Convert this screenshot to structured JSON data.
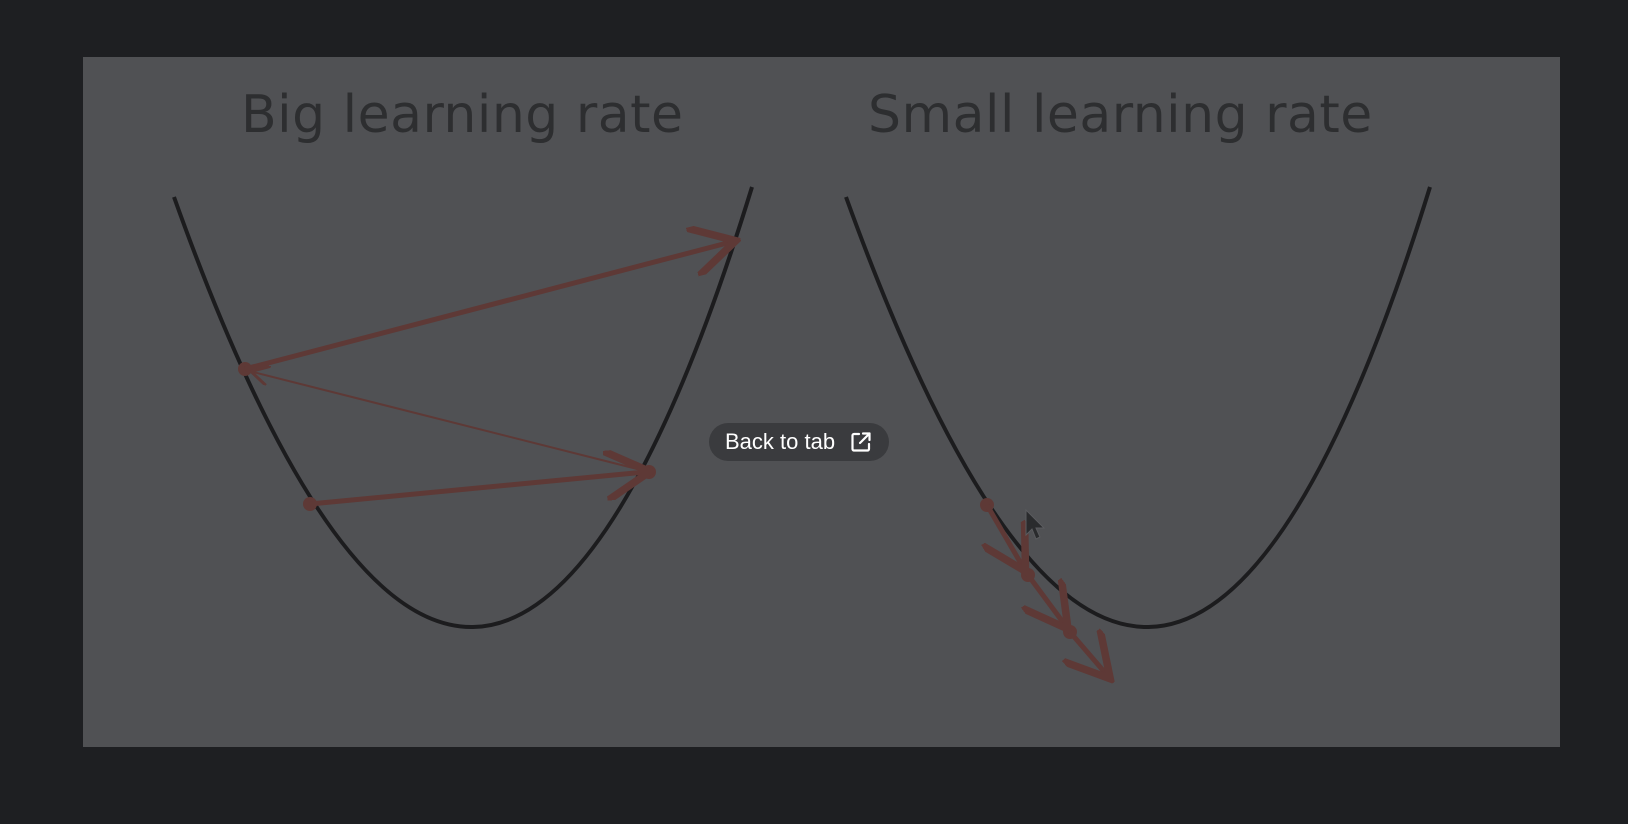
{
  "slide": {
    "left_title": "Big learning rate",
    "right_title": "Small learning rate"
  },
  "pip": {
    "back_to_tab_label": "Back to tab",
    "icon": "open-in-new-icon"
  },
  "colors": {
    "page_background": "#1e1f22",
    "slide_background": "#505154",
    "curve": "#1c1c1e",
    "arrow": "#5e3936",
    "pill_background": "#3a3b3e"
  }
}
